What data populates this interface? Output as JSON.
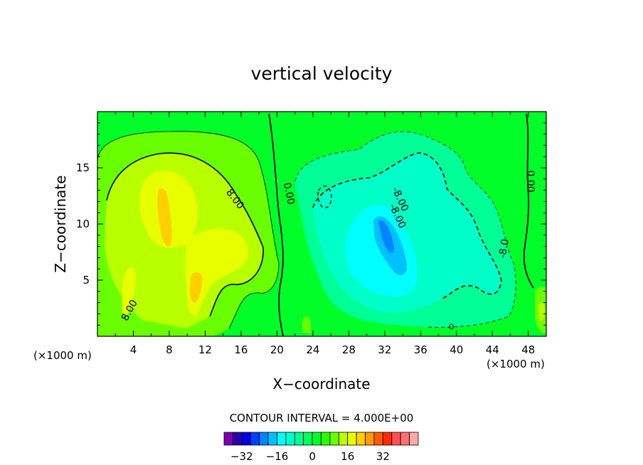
{
  "chart_data": {
    "type": "contour",
    "title": "vertical velocity",
    "xlabel": "X−coordinate",
    "ylabel": "Z−coordinate",
    "x_unit_left": "(×1000 m)",
    "x_unit_right": "(×1000 m)",
    "xlim": [
      0,
      50
    ],
    "ylim": [
      0,
      20
    ],
    "x_ticks": [
      4,
      8,
      12,
      16,
      20,
      24,
      28,
      32,
      36,
      40,
      44,
      48
    ],
    "y_ticks": [
      5,
      10,
      15
    ],
    "contour_labels": [
      {
        "text": "8.00",
        "x": 15.3,
        "y": 12.2,
        "rot": 52
      },
      {
        "text": "0.00",
        "x": 21.3,
        "y": 12.7,
        "rot": 78
      },
      {
        "text": "-8.00",
        "x": 33.7,
        "y": 12.2,
        "rot": 65
      },
      {
        "text": "-8.00",
        "x": 33.4,
        "y": 10.7,
        "rot": 65
      },
      {
        "text": "8.00",
        "x": 3.6,
        "y": 2.3,
        "rot": -62
      },
      {
        "text": "-8.0",
        "x": 45.3,
        "y": 7.8,
        "rot": -80
      },
      {
        "text": "0.00",
        "x": 48.2,
        "y": 13.8,
        "rot": 90
      }
    ],
    "interval_text": "CONTOUR INTERVAL = 4.000E+00",
    "colorbar": {
      "ticks": [
        -32,
        -16,
        0,
        16,
        32
      ],
      "tick_labels": [
        "−32",
        "−16",
        "0",
        "16",
        "32"
      ],
      "colors": [
        "#7a00b0",
        "#2a00a8",
        "#0000e0",
        "#0040ff",
        "#0085ff",
        "#00c0ff",
        "#00ffff",
        "#00ffc8",
        "#00ff96",
        "#00ff5a",
        "#00ff28",
        "#2aff00",
        "#6aff00",
        "#b8ff00",
        "#e8ff00",
        "#ffd000",
        "#ff9a00",
        "#ff5a00",
        "#ff2a00",
        "#ff5050",
        "#ff7070",
        "#ffa8a8"
      ]
    }
  }
}
